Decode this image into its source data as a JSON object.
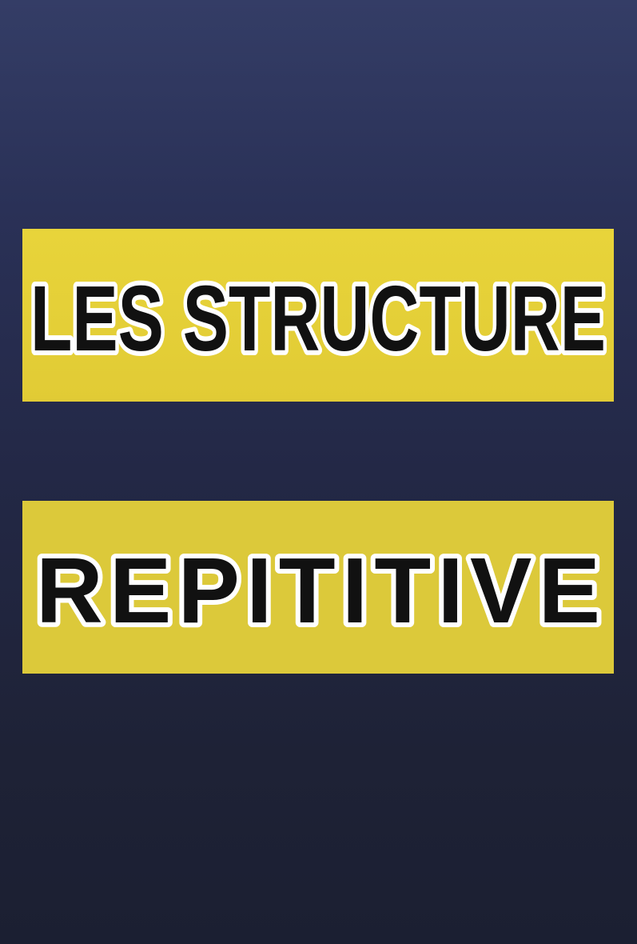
{
  "title": {
    "line1": "LES STRUCTURE",
    "line2": "REPITITIVE"
  },
  "colors": {
    "background_top": "#343d66",
    "background_bottom": "#1b1f32",
    "banner_yellow": "#e3cd37",
    "text_fill": "#111111",
    "text_outline": "#ffffff"
  }
}
